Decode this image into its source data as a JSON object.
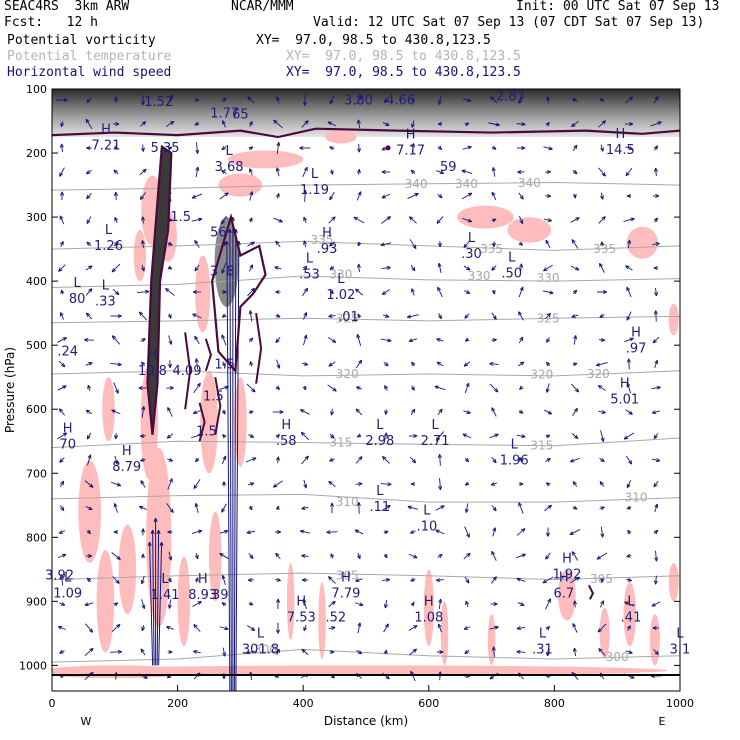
{
  "header": {
    "model": "SEAC4RS  3km ARW",
    "org": "NCAR/MMM",
    "init": "Init: 00 UTC Sat 07 Sep 13",
    "fcst": "Fcst:   12 h",
    "valid": "Valid: 12 UTC Sat 07 Sep 13 (07 CDT Sat 07 Sep 13)",
    "fields": [
      {
        "name": "Potential vorticity",
        "xy": "XY=  97.0, 98.5 to 430.8,123.5",
        "color": "#000000"
      },
      {
        "name": "Potential temperature",
        "xy": "XY=  97.0, 98.5 to 430.8,123.5",
        "color": "#b4b4b4"
      },
      {
        "name": "Horizontal wind speed",
        "xy": "XY=  97.0, 98.5 to 430.8,123.5",
        "color": "#14147a"
      }
    ]
  },
  "chart_data": {
    "type": "cross-section",
    "xlabel": "Distance (km)",
    "ylabel": "Pressure (hPa)",
    "xlim": [
      0,
      1000
    ],
    "ylim": [
      1040,
      100
    ],
    "xticks": [
      0,
      200,
      400,
      600,
      800,
      1000
    ],
    "yticks": [
      100,
      200,
      300,
      400,
      500,
      600,
      700,
      800,
      900,
      1000
    ],
    "x_end_labels": {
      "left": "W",
      "right": "E"
    },
    "colors": {
      "pv_contour": "#4a0a3c",
      "pv_shade": "#3a3a3a",
      "wind": "#14147a",
      "theta": "#a8a8a8",
      "shade_pink": "#ffbcbc"
    },
    "theta_contours": [
      {
        "label": "340",
        "points": [
          [
            0,
            258
          ],
          [
            200,
            255
          ],
          [
            400,
            250
          ],
          [
            600,
            248
          ],
          [
            800,
            246
          ],
          [
            1000,
            250
          ]
        ],
        "labels_at": [
          [
            580,
            248
          ],
          [
            660,
            248
          ],
          [
            760,
            247
          ]
        ]
      },
      {
        "label": "335",
        "points": [
          [
            0,
            350
          ],
          [
            200,
            345
          ],
          [
            400,
            338
          ],
          [
            600,
            345
          ],
          [
            800,
            352
          ],
          [
            1000,
            345
          ]
        ],
        "labels_at": [
          [
            430,
            336
          ],
          [
            700,
            350
          ],
          [
            880,
            350
          ]
        ]
      },
      {
        "label": "330",
        "points": [
          [
            0,
            410
          ],
          [
            200,
            405
          ],
          [
            400,
            392
          ],
          [
            600,
            398
          ],
          [
            800,
            400
          ],
          [
            1000,
            396
          ]
        ],
        "labels_at": [
          [
            460,
            390
          ],
          [
            680,
            392
          ],
          [
            790,
            395
          ]
        ]
      },
      {
        "label": "325",
        "points": [
          [
            0,
            465
          ],
          [
            200,
            462
          ],
          [
            400,
            458
          ],
          [
            600,
            462
          ],
          [
            800,
            458
          ],
          [
            1000,
            455
          ]
        ],
        "labels_at": [
          [
            470,
            458
          ],
          [
            790,
            458
          ]
        ]
      },
      {
        "label": "320",
        "points": [
          [
            0,
            545
          ],
          [
            200,
            540
          ],
          [
            400,
            548
          ],
          [
            600,
            545
          ],
          [
            800,
            548
          ],
          [
            1000,
            540
          ]
        ],
        "labels_at": [
          [
            470,
            545
          ],
          [
            780,
            546
          ],
          [
            870,
            545
          ]
        ]
      },
      {
        "label": "315",
        "points": [
          [
            0,
            660
          ],
          [
            200,
            650
          ],
          [
            400,
            652
          ],
          [
            600,
            655
          ],
          [
            800,
            657
          ],
          [
            1000,
            645
          ]
        ],
        "labels_at": [
          [
            460,
            652
          ],
          [
            780,
            657
          ]
        ]
      },
      {
        "label": "310",
        "points": [
          [
            0,
            740
          ],
          [
            200,
            735
          ],
          [
            400,
            733
          ],
          [
            600,
            745
          ],
          [
            800,
            745
          ],
          [
            1000,
            738
          ]
        ],
        "labels_at": [
          [
            470,
            745
          ],
          [
            930,
            738
          ]
        ]
      },
      {
        "label": "305",
        "points": [
          [
            0,
            866
          ],
          [
            200,
            860
          ],
          [
            400,
            856
          ],
          [
            600,
            860
          ],
          [
            800,
            866
          ],
          [
            1000,
            860
          ]
        ],
        "labels_at": [
          [
            470,
            860
          ],
          [
            875,
            865
          ]
        ]
      },
      {
        "label": "300",
        "points": [
          [
            0,
            995
          ],
          [
            200,
            990
          ],
          [
            400,
            975
          ],
          [
            600,
            985
          ],
          [
            800,
            990
          ],
          [
            1000,
            985
          ]
        ],
        "labels_at": [
          [
            340,
            975
          ],
          [
            900,
            987
          ]
        ]
      }
    ],
    "extrema": [
      {
        "t": "H",
        "v": "7.21",
        "x": 86,
        "p": 188
      },
      {
        "t": "",
        "v": "1.52",
        "x": 170,
        "p": 120
      },
      {
        "t": "",
        "v": "5.35",
        "x": 180,
        "p": 192
      },
      {
        "t": "",
        "v": "1.77",
        "x": 275,
        "p": 138
      },
      {
        "t": "L",
        "v": "3.68",
        "x": 282,
        "p": 222
      },
      {
        "t": "",
        "v": "3.80",
        "x": 488,
        "p": 118
      },
      {
        "t": "",
        "v": "4.66",
        "x": 555,
        "p": 118
      },
      {
        "t": "",
        "v": "2.87",
        "x": 730,
        "p": 112
      },
      {
        "t": "",
        "v": "65",
        "x": 300,
        "p": 140
      },
      {
        "t": "H",
        "v": "7.17",
        "x": 571,
        "p": 196
      },
      {
        "t": "",
        "v": "59",
        "x": 631,
        "p": 222
      },
      {
        "t": "L",
        "v": "1.19",
        "x": 418,
        "p": 258
      },
      {
        "t": "H",
        "v": "14.5",
        "x": 905,
        "p": 195
      },
      {
        "t": "",
        "v": "56",
        "x": 265,
        "p": 324
      },
      {
        "t": "",
        "v": "1.5",
        "x": 205,
        "p": 300
      },
      {
        "t": "L",
        "v": "1.26",
        "x": 90,
        "p": 345
      },
      {
        "t": "L",
        "v": "80",
        "x": 40,
        "p": 428
      },
      {
        "t": "L",
        "v": ".33",
        "x": 85,
        "p": 432
      },
      {
        "t": "H",
        "v": ".93",
        "x": 438,
        "p": 350
      },
      {
        "t": "L",
        "v": ".53",
        "x": 410,
        "p": 390
      },
      {
        "t": "L",
        "v": "1.02",
        "x": 460,
        "p": 422
      },
      {
        "t": "",
        "v": ".01",
        "x": 472,
        "p": 456
      },
      {
        "t": "L",
        "v": ".30",
        "x": 668,
        "p": 358
      },
      {
        "t": "L",
        "v": ".50",
        "x": 732,
        "p": 388
      },
      {
        "t": "",
        "v": "3",
        "x": 258,
        "p": 385
      },
      {
        "t": "",
        "v": "8",
        "x": 284,
        "p": 385
      },
      {
        "t": "",
        "v": ".24",
        "x": 25,
        "p": 510
      },
      {
        "t": "H",
        "v": "10.8",
        "x": 160,
        "p": 540
      },
      {
        "t": "",
        "v": "4.09",
        "x": 215,
        "p": 540
      },
      {
        "t": "",
        "v": "1.5",
        "x": 257,
        "p": 580
      },
      {
        "t": "",
        "v": "1.5",
        "x": 275,
        "p": 530
      },
      {
        "t": "",
        "v": "1.5",
        "x": 246,
        "p": 635
      },
      {
        "t": "H",
        "v": ".97",
        "x": 930,
        "p": 505
      },
      {
        "t": "H",
        "v": "5.01",
        "x": 912,
        "p": 585
      },
      {
        "t": "H",
        "v": "70",
        "x": 25,
        "p": 655
      },
      {
        "t": "H",
        "v": ".58",
        "x": 373,
        "p": 650
      },
      {
        "t": "L",
        "v": "2.98",
        "x": 522,
        "p": 650
      },
      {
        "t": "L",
        "v": "2.71",
        "x": 610,
        "p": 650
      },
      {
        "t": "L",
        "v": "1.96",
        "x": 736,
        "p": 680
      },
      {
        "t": "H",
        "v": "8.79",
        "x": 119,
        "p": 690
      },
      {
        "t": "L",
        "v": ".11",
        "x": 522,
        "p": 753
      },
      {
        "t": "L",
        "v": ".10",
        "x": 597,
        "p": 783
      },
      {
        "t": "H",
        "v": "1.92",
        "x": 820,
        "p": 858
      },
      {
        "t": "H",
        "v": "6.7",
        "x": 815,
        "p": 888
      },
      {
        "t": "",
        "v": "3.92",
        "x": 12,
        "p": 860
      },
      {
        "t": "L",
        "v": "1.09",
        "x": 25,
        "p": 888
      },
      {
        "t": "L",
        "v": "1.41",
        "x": 180,
        "p": 890
      },
      {
        "t": "H",
        "v": "8.93",
        "x": 240,
        "p": 890
      },
      {
        "t": "",
        "v": "39",
        "x": 268,
        "p": 890
      },
      {
        "t": "H",
        "v": "7.79",
        "x": 468,
        "p": 888
      },
      {
        "t": "H",
        "v": "7.53",
        "x": 397,
        "p": 925
      },
      {
        "t": "",
        "v": ".52",
        "x": 452,
        "p": 925
      },
      {
        "t": "H",
        "v": "1.08",
        "x": 600,
        "p": 925
      },
      {
        "t": "L",
        "v": ".41",
        "x": 922,
        "p": 925
      },
      {
        "t": "L",
        "v": ".31",
        "x": 781,
        "p": 975
      },
      {
        "t": "L",
        "v": "3.1",
        "x": 1000,
        "p": 975
      },
      {
        "t": "L",
        "v": "301.8",
        "x": 332,
        "p": 975
      }
    ],
    "wind_max_columns": [
      {
        "x": 165,
        "p_top": 770,
        "p_bottom": 1000
      },
      {
        "x": 288,
        "p_top": 300,
        "p_bottom": 1040
      }
    ]
  }
}
